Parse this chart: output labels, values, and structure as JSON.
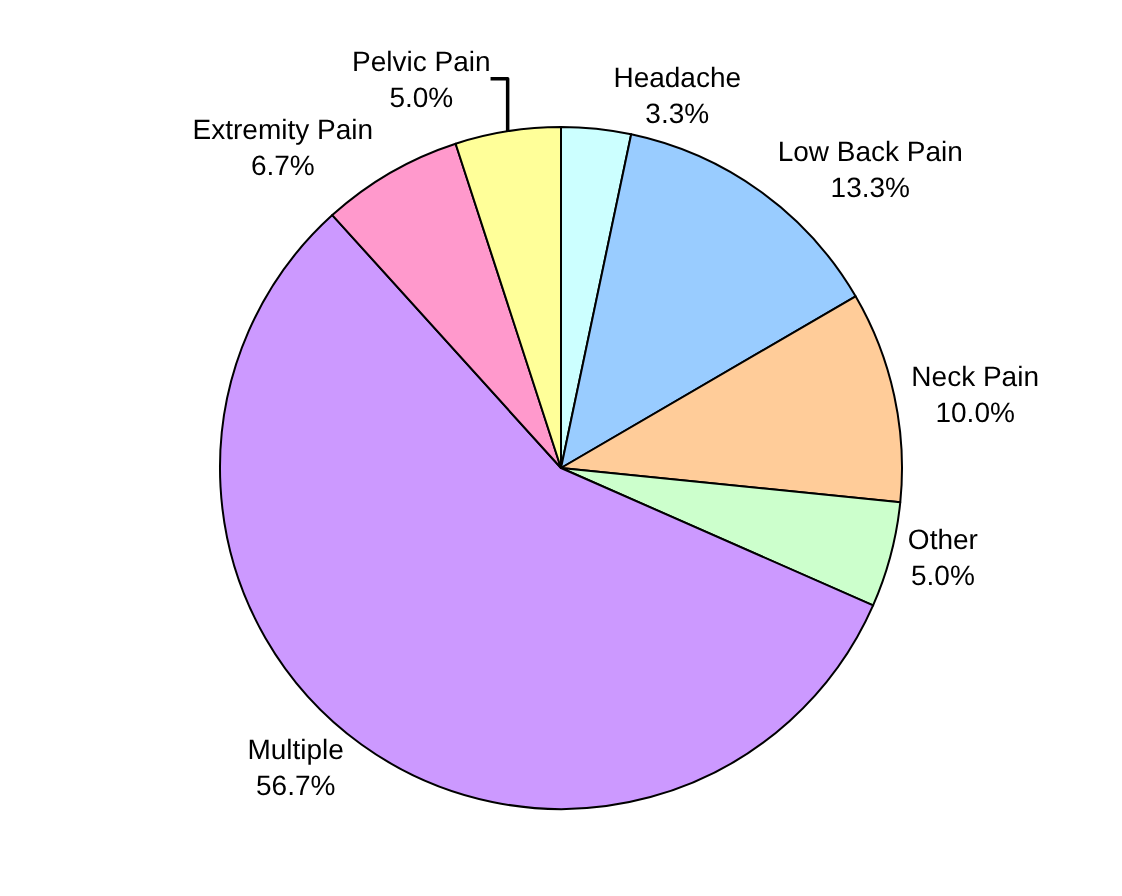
{
  "chart_data": {
    "type": "pie",
    "categories": [
      "Headache",
      "Low Back Pain",
      "Neck Pain",
      "Other",
      "Multiple",
      "Extremity Pain",
      "Pelvic Pain"
    ],
    "values": [
      3.3,
      13.3,
      10.0,
      5.0,
      56.7,
      6.7,
      5.0
    ],
    "value_labels": [
      "3.3%",
      "13.3%",
      "10.0%",
      "5.0%",
      "56.7%",
      "6.7%",
      "5.0%"
    ],
    "colors": [
      "#ccffff",
      "#99ccff",
      "#ffcc99",
      "#ccffcc",
      "#cc99ff",
      "#ff99cc",
      "#ffff99"
    ],
    "legend": false
  }
}
